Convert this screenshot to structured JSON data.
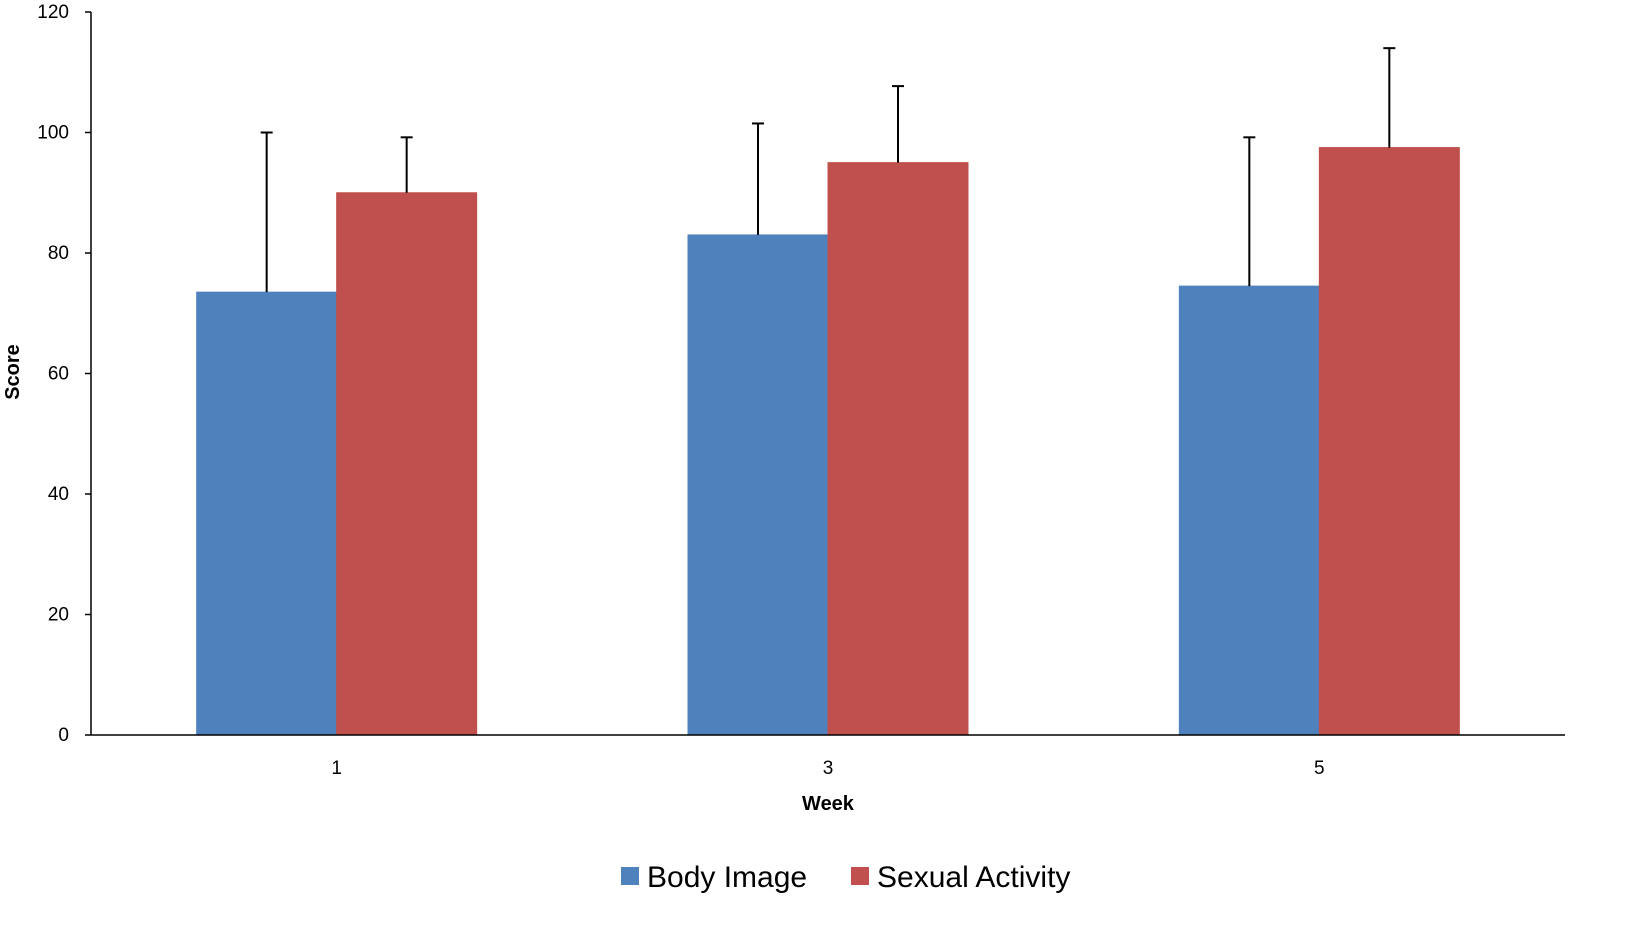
{
  "chart_data": {
    "type": "bar",
    "title": "",
    "xlabel": "Week",
    "ylabel": "Score",
    "categories": [
      "1",
      "3",
      "5"
    ],
    "ylim": [
      0,
      120
    ],
    "yticks": [
      0,
      20,
      40,
      60,
      80,
      100,
      120
    ],
    "grid": false,
    "legend_position": "bottom",
    "error_bars": true,
    "series": [
      {
        "name": "Body Image",
        "color": "#4f81bd",
        "values": [
          73.5,
          83,
          74.5
        ],
        "error_upper": [
          26.5,
          18.5,
          24.7
        ]
      },
      {
        "name": "Sexual Activity",
        "color": "#c0504d",
        "values": [
          90,
          95,
          97.5
        ],
        "error_upper": [
          9.2,
          12.7,
          16.5
        ]
      }
    ]
  }
}
